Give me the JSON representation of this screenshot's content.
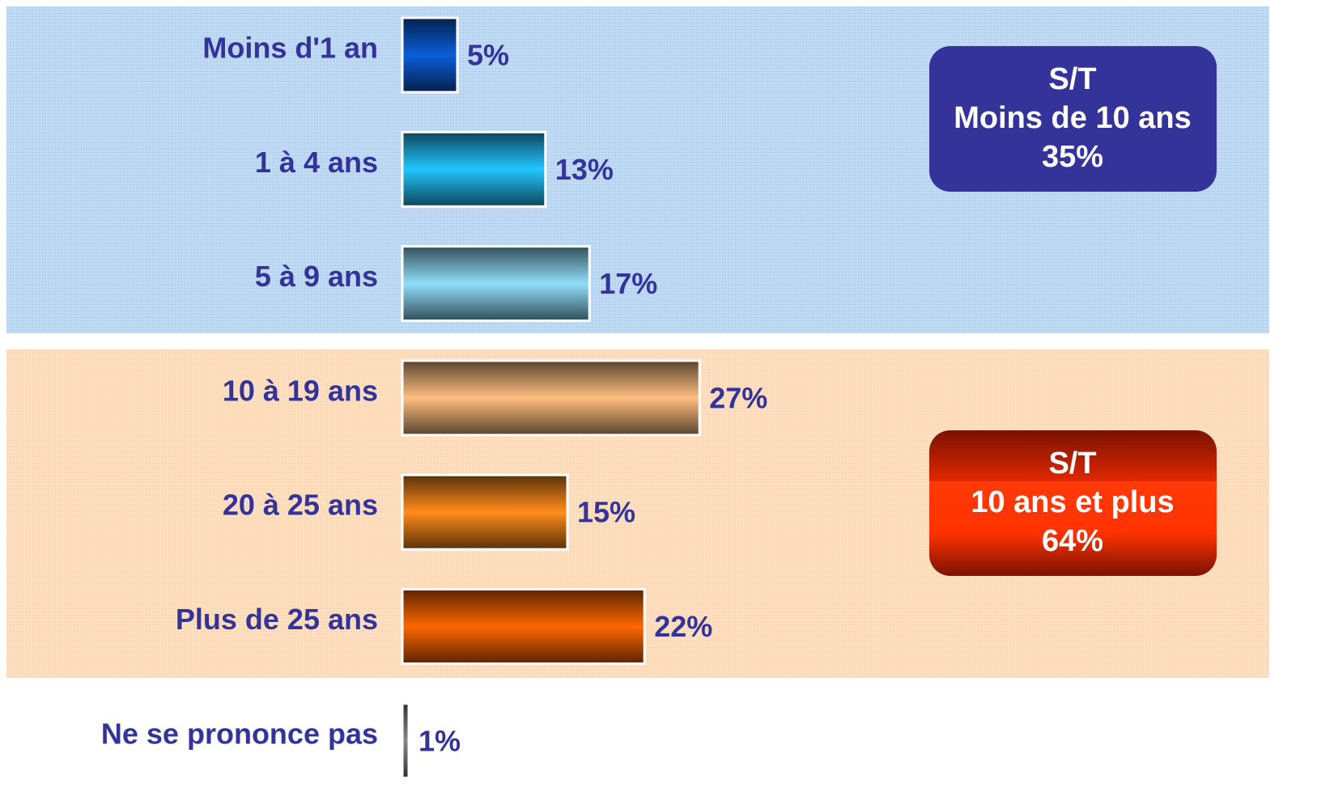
{
  "chart_data": {
    "type": "bar",
    "categories": [
      "Moins d'1 an",
      "1 à 4 ans",
      "5 à 9 ans",
      "10 à 19 ans",
      "20 à 25 ans",
      "Plus de 25 ans",
      "Ne se prononce pas"
    ],
    "values": [
      5,
      13,
      17,
      27,
      15,
      22,
      1
    ],
    "value_labels": [
      "5%",
      "13%",
      "17%",
      "27%",
      "15%",
      "22%",
      "1%"
    ],
    "colors": [
      "#0a5ed8",
      "#22c6ff",
      "#90defa",
      "#ffbe80",
      "#ff8c1a",
      "#ff6600",
      "#8a8a8a"
    ],
    "annotations": [
      {
        "lines": [
          "S/T",
          "Moins de 10 ans",
          "35%"
        ],
        "color": "#333399"
      },
      {
        "lines": [
          "S/T",
          "10 ans et plus",
          "64%"
        ],
        "color": "#ff3300"
      }
    ]
  }
}
